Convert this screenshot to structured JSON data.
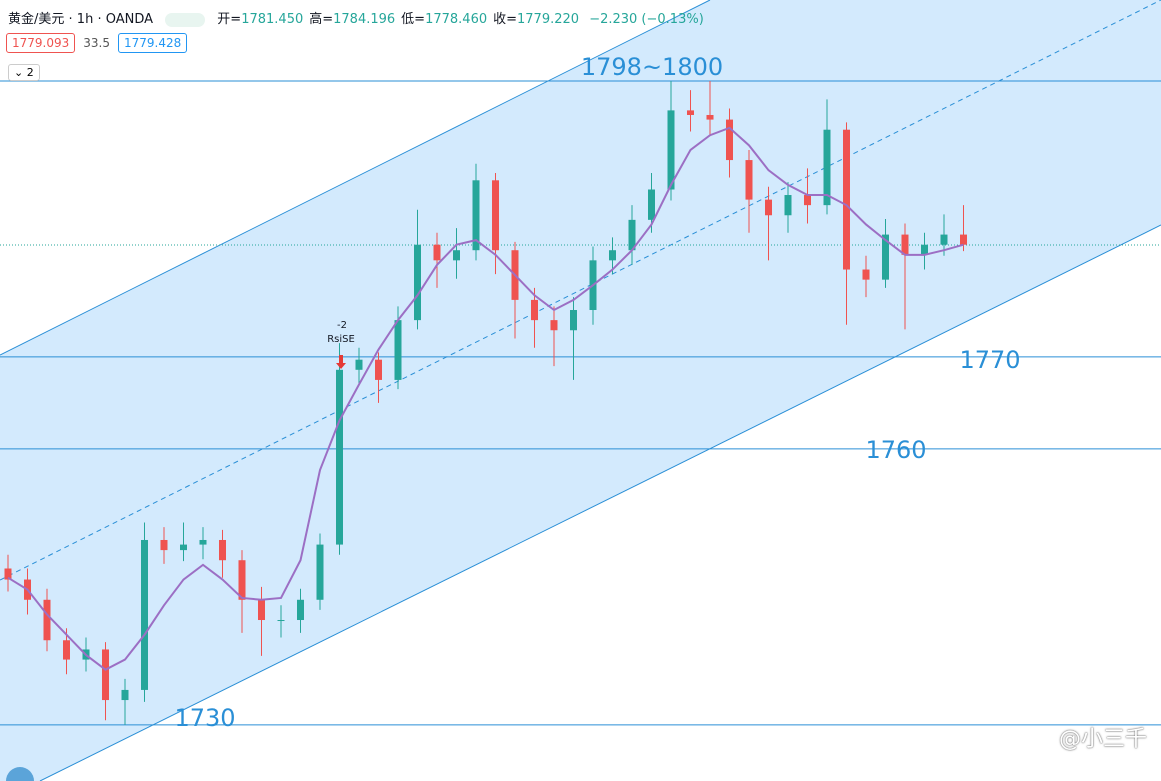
{
  "header": {
    "symbol": "黄金/美元",
    "interval": "1h",
    "source": "OANDA",
    "ohlc": [
      {
        "label": "开=",
        "value": "1781.450"
      },
      {
        "label": "高=",
        "value": "1784.196"
      },
      {
        "label": "低=",
        "value": "1778.460"
      },
      {
        "label": "收=",
        "value": "1779.220"
      }
    ],
    "change": "−2.230 (−0.13%)",
    "bid": "1779.093",
    "spread": "33.5",
    "ask": "1779.428",
    "indicator_count": "2"
  },
  "chart_data": {
    "type": "candlestick",
    "ylim": [
      1723.9,
      1808.8
    ],
    "open": [
      1747.0,
      1745.8,
      1743.6,
      1739.2,
      1737.1,
      1738.2,
      1732.7,
      1733.8,
      1750.1,
      1749.0,
      1749.6,
      1750.1,
      1747.9,
      1743.6,
      1741.4,
      1741.4,
      1743.6,
      1749.6,
      1768.6,
      1769.7,
      1767.5,
      1774.0,
      1782.2,
      1780.5,
      1781.6,
      1789.2,
      1781.6,
      1776.2,
      1774.0,
      1772.9,
      1775.1,
      1780.5,
      1781.6,
      1784.9,
      1788.2,
      1796.8,
      1796.3,
      1795.8,
      1791.4,
      1787.1,
      1785.4,
      1787.6,
      1786.5,
      1794.7,
      1779.5,
      1778.4,
      1783.3,
      1781.1,
      1782.2,
      1783.3
    ],
    "high": [
      1748.5,
      1747.0,
      1744.8,
      1740.5,
      1739.5,
      1739.0,
      1735.0,
      1752.0,
      1751.5,
      1752.0,
      1751.5,
      1751.2,
      1749.0,
      1745.0,
      1743.0,
      1744.8,
      1750.8,
      1771.5,
      1771.0,
      1770.5,
      1775.5,
      1786.0,
      1783.5,
      1784.0,
      1791.0,
      1790.0,
      1782.5,
      1777.5,
      1775.5,
      1776.5,
      1782.0,
      1783.0,
      1786.5,
      1790.0,
      1800.0,
      1799.0,
      1800.0,
      1797.0,
      1792.5,
      1788.5,
      1789.0,
      1790.5,
      1798.0,
      1795.5,
      1781.0,
      1785.0,
      1784.5,
      1783.5,
      1785.5,
      1786.5
    ],
    "low": [
      1744.5,
      1742.0,
      1738.0,
      1735.5,
      1735.8,
      1730.5,
      1730.0,
      1732.5,
      1747.5,
      1747.8,
      1748.0,
      1746.0,
      1740.0,
      1737.5,
      1739.5,
      1740.0,
      1742.5,
      1748.5,
      1767.0,
      1765.0,
      1766.5,
      1773.0,
      1777.5,
      1778.5,
      1780.5,
      1779.0,
      1772.0,
      1771.0,
      1769.0,
      1767.5,
      1773.5,
      1779.0,
      1780.0,
      1783.5,
      1787.0,
      1794.5,
      1794.0,
      1789.5,
      1783.5,
      1780.5,
      1783.5,
      1784.5,
      1785.5,
      1773.5,
      1776.5,
      1777.5,
      1773.0,
      1779.5,
      1781.0,
      1781.5
    ],
    "close": [
      1745.8,
      1743.6,
      1739.2,
      1737.1,
      1738.2,
      1732.7,
      1733.8,
      1750.1,
      1749.0,
      1749.6,
      1750.1,
      1747.9,
      1743.6,
      1741.4,
      1741.4,
      1743.6,
      1749.6,
      1768.6,
      1769.7,
      1767.5,
      1774.0,
      1782.2,
      1780.5,
      1781.6,
      1789.2,
      1781.6,
      1776.2,
      1774.0,
      1772.9,
      1775.1,
      1780.5,
      1781.6,
      1784.9,
      1788.2,
      1796.8,
      1796.3,
      1795.8,
      1791.4,
      1787.1,
      1785.4,
      1787.6,
      1786.5,
      1794.7,
      1779.5,
      1778.4,
      1783.3,
      1781.1,
      1782.2,
      1783.3,
      1782.2
    ],
    "up_color": "#26a69a",
    "down_color": "#ef5350",
    "ma": {
      "color": "#9c6fc4",
      "values": [
        1746.0,
        1744.7,
        1742.0,
        1739.8,
        1737.6,
        1736.0,
        1737.1,
        1739.8,
        1743.0,
        1745.8,
        1747.4,
        1745.8,
        1743.8,
        1743.6,
        1743.8,
        1747.9,
        1757.7,
        1763.1,
        1767.0,
        1770.8,
        1774.0,
        1776.7,
        1780.0,
        1782.2,
        1782.7,
        1781.1,
        1778.9,
        1776.7,
        1775.1,
        1776.2,
        1777.8,
        1779.5,
        1781.6,
        1784.4,
        1788.7,
        1792.5,
        1794.1,
        1794.9,
        1793.0,
        1790.3,
        1788.7,
        1787.6,
        1787.6,
        1786.5,
        1784.4,
        1782.7,
        1781.1,
        1781.1,
        1781.6,
        1782.2
      ]
    },
    "levels": [
      {
        "value": 1800,
        "label": "1798~1800"
      },
      1770,
      1760,
      1730
    ],
    "level_color": "#2a8fd6",
    "annotation": {
      "count": "-2",
      "text": "RsiSE"
    },
    "watermark": "@小三千"
  }
}
